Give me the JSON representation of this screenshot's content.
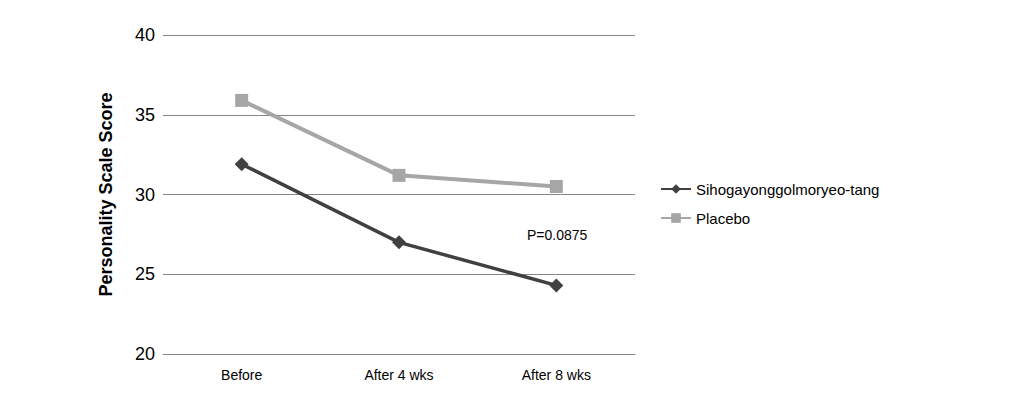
{
  "chart_data": {
    "type": "line",
    "y_label": "Personality Scale Score",
    "categories": [
      "Before",
      "After 4 wks",
      "After 8 wks"
    ],
    "series": [
      {
        "name": "Sihogayonggolmoryeo-tang",
        "color": "#404040",
        "marker": "diamond",
        "values": [
          31.9,
          27.0,
          24.3
        ]
      },
      {
        "name": "Placebo",
        "color": "#a6a6a6",
        "marker": "square",
        "values": [
          35.9,
          31.2,
          30.5
        ]
      }
    ],
    "annotations": [
      {
        "text": "P=0.0875"
      }
    ],
    "ylim": [
      20,
      40
    ],
    "yticks": [
      20,
      25,
      30,
      35,
      40
    ],
    "grid": true,
    "legend": "right"
  }
}
